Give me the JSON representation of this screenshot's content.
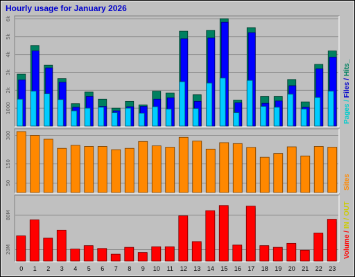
{
  "chart_data": {
    "type": "bar",
    "title": "Hourly usage for January 2026",
    "categories": [
      "0",
      "1",
      "2",
      "3",
      "4",
      "5",
      "6",
      "7",
      "8",
      "9",
      "10",
      "11",
      "12",
      "13",
      "14",
      "15",
      "16",
      "17",
      "18",
      "19",
      "20",
      "21",
      "22",
      "23"
    ],
    "panels": [
      {
        "id": "top",
        "ylim": [
          0,
          6000
        ],
        "yticks": [
          {
            "value": 1000,
            "label": "1000"
          },
          {
            "value": 2000,
            "label": "2k"
          },
          {
            "value": 3000,
            "label": "3k"
          },
          {
            "value": 4000,
            "label": "4k"
          },
          {
            "value": 5000,
            "label": "5k"
          },
          {
            "value": 6000,
            "label": "6k"
          }
        ],
        "series": [
          {
            "name": "Pages",
            "color": "#00ccff",
            "values": [
              1500,
              1950,
              1800,
              1480,
              850,
              1000,
              1050,
              750,
              1000,
              720,
              1080,
              950,
              2480,
              980,
              2400,
              2680,
              750,
              2550,
              1100,
              1050,
              1780,
              950,
              1600,
              1950
            ]
          },
          {
            "name": "Files",
            "color": "#0000ff",
            "values": [
              2580,
              4200,
              3250,
              2450,
              1050,
              1650,
              1100,
              850,
              1080,
              1100,
              1500,
              1580,
              4880,
              1380,
              4920,
              5800,
              1300,
              5220,
              1270,
              1400,
              2250,
              1050,
              3200,
              3850
            ]
          },
          {
            "name": "Hits",
            "color": "#008060",
            "values": [
              2900,
              4500,
              3400,
              2650,
              1250,
              1900,
              1500,
              1000,
              1380,
              1180,
              1950,
              1850,
              5300,
              1750,
              5350,
              6000,
              1450,
              5500,
              1650,
              1650,
              2600,
              1350,
              3450,
              4200
            ]
          }
        ],
        "side_label": [
          {
            "text": "Pages",
            "color": "#00cccc"
          },
          {
            "text": " / ",
            "color": "#00cccc"
          },
          {
            "text": "Files",
            "color": "#0000cc"
          },
          {
            "text": " / ",
            "color": "#0000cc"
          },
          {
            "text": "Hits",
            "color": "#008060"
          },
          {
            "text": "_",
            "color": "#008060"
          }
        ]
      },
      {
        "id": "mid",
        "ylim": [
          0,
          320
        ],
        "yticks": [
          {
            "value": 50,
            "label": "50"
          },
          {
            "value": 150,
            "label": "150"
          },
          {
            "value": 300,
            "label": "300"
          }
        ],
        "series": [
          {
            "name": "Sites",
            "color": "#ff8800",
            "values": [
              320,
              300,
              280,
              232,
              248,
              242,
              242,
              225,
              232,
              268,
              245,
              238,
              290,
              270,
              228,
              262,
              257,
              237,
              185,
              205,
              240,
              192,
              242,
              238
            ]
          }
        ],
        "side_label": [
          {
            "text": "Sites",
            "color": "#ff8800"
          }
        ]
      },
      {
        "id": "bot",
        "ylim": [
          0,
          110
        ],
        "yticks": [
          {
            "value": 20,
            "label": "20M"
          },
          {
            "value": 80,
            "label": "80M"
          }
        ],
        "series": [
          {
            "name": "Volume",
            "color": "#ff0000",
            "values": [
              44,
              72,
              40,
              54,
              21,
              27,
              22,
              12,
              24,
              15,
              25,
              25,
              79,
              34,
              88,
              97,
              28,
              96,
              27,
              24,
              31,
              19,
              49,
              73
            ]
          },
          {
            "name": "IN",
            "color": "#f4a460",
            "values": [
              42,
              68,
              36,
              51,
              20,
              26,
              21,
              11,
              23,
              14,
              24,
              24,
              74,
              31,
              85,
              94,
              26,
              92,
              26,
              23,
              29,
              18,
              46,
              68
            ]
          }
        ],
        "side_label": [
          {
            "text": "Volume",
            "color": "#ff0000"
          },
          {
            "text": " / ",
            "color": "#ff0000"
          },
          {
            "text": "IN",
            "color": "#cccc00"
          },
          {
            "text": " / ",
            "color": "#cccc00"
          },
          {
            "text": "OUT",
            "color": "#cccc00"
          },
          {
            "text": " ",
            "color": "#cccc00"
          }
        ]
      }
    ],
    "grid": true
  }
}
